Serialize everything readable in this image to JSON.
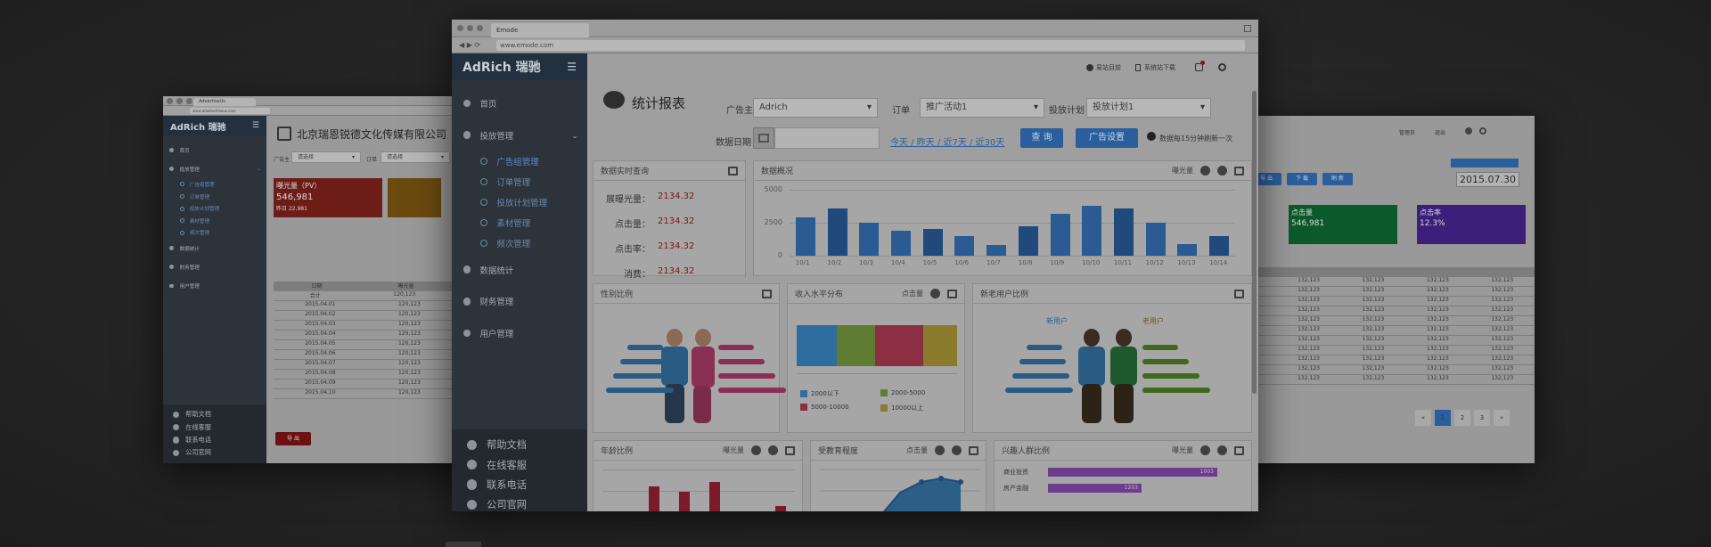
{
  "colors": {
    "accent": "#2a5e9c",
    "sidebar": "#2c333a",
    "alert": "#7c1616",
    "bg": "#262626"
  },
  "left_window": {
    "tab": "AdvertiseUs",
    "url": "www.adadvertiseus.com",
    "logo": "AdRich 瑞驰",
    "company": "北京瑞恩锐德文化传媒有限公司",
    "advertiser_label": "广告主",
    "advertiser_value": "请选择",
    "order_label": "订单",
    "order_value": "请选择",
    "nav": [
      {
        "label": "首页",
        "sub": false
      },
      {
        "label": "投放管理",
        "sub": false
      },
      {
        "label": "广告组管理",
        "sub": true,
        "active": true
      },
      {
        "label": "订单管理",
        "sub": true,
        "active": false
      },
      {
        "label": "投放计划管理",
        "sub": true,
        "active": false
      },
      {
        "label": "素材管理",
        "sub": true,
        "active": false
      },
      {
        "label": "频次管理",
        "sub": true,
        "active": false
      },
      {
        "label": "数据统计",
        "sub": false
      },
      {
        "label": "财务管理",
        "sub": false
      },
      {
        "label": "用户管理",
        "sub": false
      }
    ],
    "bottom_nav": [
      "帮助文档",
      "在线客服",
      "联系电话",
      "公司官网"
    ],
    "card_red": {
      "title": "曝光量（PV）",
      "value": "546,981",
      "foot": "昨日 22,981"
    },
    "table_header": [
      "日期",
      "曝光量"
    ],
    "table_rows": [
      [
        "合计",
        "120,123"
      ],
      [
        "2015.04.01",
        "120,123"
      ],
      [
        "2015.04.02",
        "120,123"
      ],
      [
        "2015.04.03",
        "120,123"
      ],
      [
        "2015.04.04",
        "120,123"
      ],
      [
        "2015.04.05",
        "120,123"
      ],
      [
        "2015.04.06",
        "120,123"
      ],
      [
        "2015.04.07",
        "120,123"
      ],
      [
        "2015.04.08",
        "120,123"
      ],
      [
        "2015.04.09",
        "120,123"
      ],
      [
        "2015.04.10",
        "120,123"
      ]
    ],
    "export_label": "导 出"
  },
  "right_window": {
    "user_label": "管理员",
    "logout_label": "退出",
    "date_value": "2015.07.30",
    "filter_buttons": [
      "查 询",
      "导 出",
      "下 载",
      "刷 新"
    ],
    "cards": [
      {
        "title": "点击量",
        "value": "546,981",
        "color": "#0c5a2c"
      },
      {
        "title": "点击率",
        "value": "12.3%",
        "color": "#3b1f7a"
      }
    ],
    "table_rows": [
      "132,123",
      "132,123",
      "132,123",
      "132,123",
      "132,123",
      "132,123",
      "132,123",
      "132,123",
      "132,123",
      "132,123",
      "132,123"
    ],
    "pager": [
      "«",
      "1",
      "2",
      "3",
      "»"
    ]
  },
  "main_window": {
    "tab": "Emode",
    "url": "www.emode.com",
    "logo": "AdRich 瑞驰",
    "header": {
      "user": "易站目前",
      "msg": "系统站下载"
    },
    "nav": [
      {
        "label": "首页",
        "sub": false
      },
      {
        "label": "投放管理",
        "sub": false
      },
      {
        "label": "广告组管理",
        "sub": true,
        "active": true
      },
      {
        "label": "订单管理",
        "sub": true,
        "active": false
      },
      {
        "label": "投放计划管理",
        "sub": true,
        "active": false
      },
      {
        "label": "素材管理",
        "sub": true,
        "active": false
      },
      {
        "label": "频次管理",
        "sub": true,
        "active": false
      },
      {
        "label": "数据统计",
        "sub": false
      },
      {
        "label": "财务管理",
        "sub": false
      },
      {
        "label": "用户管理",
        "sub": false
      }
    ],
    "bottom_nav": [
      "帮助文档",
      "在线客服",
      "联系电话",
      "公司官网"
    ],
    "page_title": "统计报表",
    "filters": {
      "advertiser_label": "广告主",
      "advertiser_value": "Adrich",
      "order_label": "订单",
      "order_value": "推广活动1",
      "plan_label": "投放计划",
      "plan_value": "投放计划1",
      "date_label": "数据日期",
      "quick_links": "今天 / 昨天 / 近7天 / 近30天",
      "query_btn": "查 询",
      "extra_btn": "广告设置",
      "hint": "数据每15分钟刷新一次"
    },
    "realtime": {
      "title": "数据实时查询",
      "rows": [
        {
          "label": "展曝光量：",
          "value": "2134.32"
        },
        {
          "label": "点击量：",
          "value": "2134.32"
        },
        {
          "label": "点击率：",
          "value": "2134.32"
        },
        {
          "label": "消费：",
          "value": "2134.32"
        }
      ]
    },
    "overview": {
      "title": "数据概况",
      "metric": "曝光量"
    },
    "gender": {
      "title": "性别比例"
    },
    "income": {
      "title": "收入水平分布",
      "metric": "点击量"
    },
    "newuser": {
      "title": "新老用户比例",
      "label_a": "新用户",
      "label_b": "老用户"
    },
    "age": {
      "title": "年龄比例",
      "metric": "曝光量"
    },
    "interest": {
      "title": "受教育程度",
      "metric": "点击量"
    },
    "interest2": {
      "title": "兴趣人群比例",
      "metric": "曝光量",
      "items": [
        {
          "label": "商业投资",
          "value": "1003"
        },
        {
          "label": "房产金融",
          "value": "1203"
        }
      ]
    }
  },
  "chart_data": [
    {
      "type": "bar",
      "title": "数据概况",
      "categories": [
        "10/1",
        "10/2",
        "10/3",
        "10/4",
        "10/5",
        "10/6",
        "10/7",
        "10/8",
        "10/9",
        "10/10",
        "10/11",
        "10/12",
        "10/13",
        "10/14"
      ],
      "values": [
        2900,
        3600,
        2500,
        1900,
        2000,
        1500,
        800,
        2200,
        3200,
        3800,
        3600,
        2500,
        900,
        1500
      ],
      "ylim": [
        0,
        5000
      ],
      "yticks": [
        "5000",
        "2500",
        "0"
      ]
    },
    {
      "type": "bar",
      "title": "收入水平分布",
      "categories": [
        "0-2000",
        "2000-5000",
        "5000-10000",
        "10000+"
      ],
      "values": [
        25,
        24,
        30,
        21
      ],
      "legend": [
        "2000以下",
        "2000-5000",
        "5000-10000",
        "10000以上"
      ],
      "colors": [
        "#2e6d9e",
        "#5f7d32",
        "#8c2f43",
        "#8b7b2c"
      ]
    },
    {
      "type": "bar",
      "title": "年龄比例",
      "values": [
        6,
        5,
        7,
        2
      ]
    }
  ]
}
